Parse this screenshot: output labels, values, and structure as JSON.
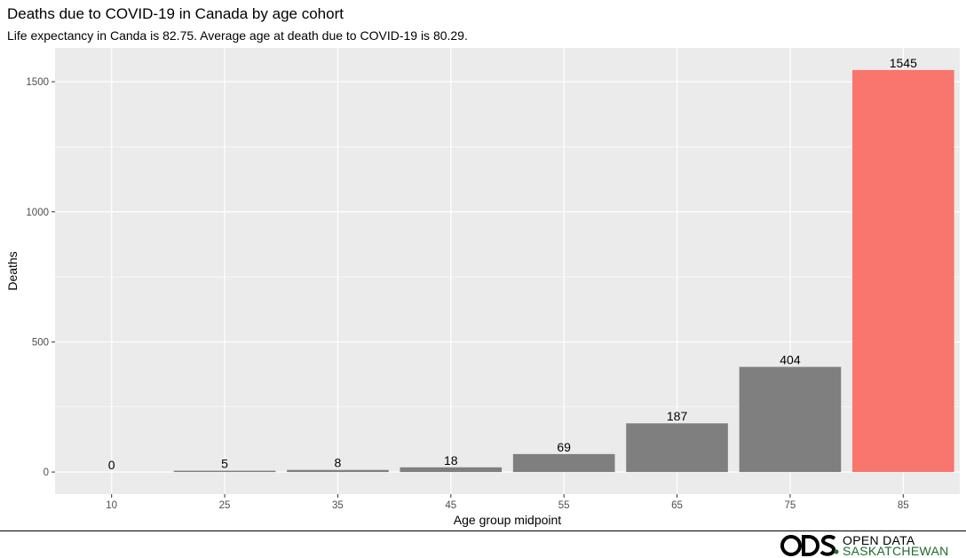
{
  "chart_data": {
    "type": "bar",
    "title": "Deaths due to COVID-19 in Canada by age cohort",
    "subtitle": "Life expectancy in Canda is 82.75. Average age at death due to COVID-19 is 80.29.",
    "xlabel": "Age group midpoint",
    "ylabel": "Deaths",
    "categories": [
      "10",
      "25",
      "35",
      "45",
      "55",
      "65",
      "75",
      "85"
    ],
    "values": [
      0,
      5,
      8,
      18,
      69,
      187,
      404,
      1545
    ],
    "bar_colors": [
      "#7f7f7f",
      "#7f7f7f",
      "#7f7f7f",
      "#7f7f7f",
      "#7f7f7f",
      "#7f7f7f",
      "#7f7f7f",
      "#f8766d"
    ],
    "ylim": [
      -85,
      1630
    ],
    "yticks": [
      0,
      500,
      1000,
      1500
    ],
    "ytick_labels": [
      "0",
      "500",
      "1000",
      "1500"
    ],
    "panel_background": "#ebebeb",
    "grid": true
  },
  "footer": {
    "logo_text_line1": "OPEN DATA",
    "logo_text_line2": "SASKATCHEWAN",
    "logo_mark_text": "ODS"
  }
}
